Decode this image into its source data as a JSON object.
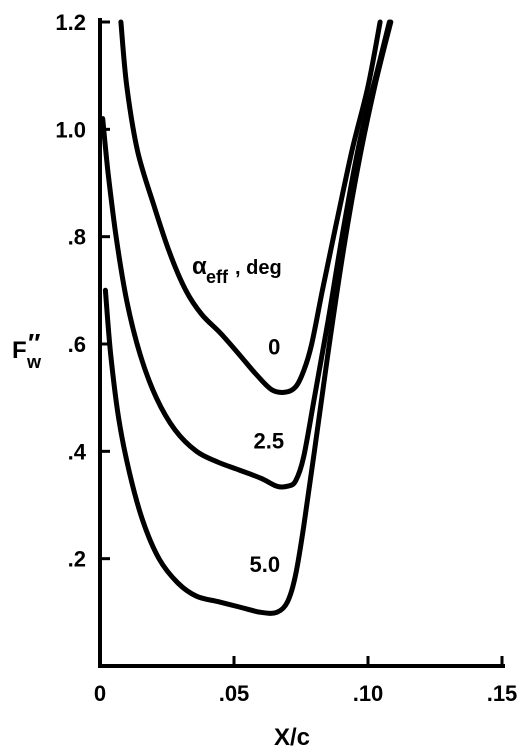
{
  "chart_data": {
    "type": "line",
    "title": "",
    "xlabel": "X/c",
    "ylabel_main": "F",
    "ylabel_prime": "″",
    "ylabel_sub": "w",
    "xlim": [
      0,
      0.15
    ],
    "ylim": [
      0,
      1.2
    ],
    "x_ticks": [
      {
        "value": 0,
        "label": "0"
      },
      {
        "value": 0.05,
        "label": ".05"
      },
      {
        "value": 0.1,
        "label": ".10"
      },
      {
        "value": 0.15,
        "label": ".15"
      }
    ],
    "y_ticks": [
      {
        "value": 0.2,
        "label": ".2"
      },
      {
        "value": 0.4,
        "label": ".4"
      },
      {
        "value": 0.6,
        "label": ".6"
      },
      {
        "value": 0.8,
        "label": ".8"
      },
      {
        "value": 1.0,
        "label": "1.0"
      },
      {
        "value": 1.2,
        "label": "1.2"
      }
    ],
    "legend": {
      "title_symbol": "α",
      "title_sub": "eff",
      "title_rest": ", deg",
      "placement": "center"
    },
    "grid": false,
    "series": [
      {
        "name": "0",
        "points": [
          [
            0.0078,
            1.2
          ],
          [
            0.01,
            1.08
          ],
          [
            0.014,
            0.96
          ],
          [
            0.02,
            0.86
          ],
          [
            0.026,
            0.77
          ],
          [
            0.032,
            0.7
          ],
          [
            0.038,
            0.655
          ],
          [
            0.045,
            0.62
          ],
          [
            0.052,
            0.58
          ],
          [
            0.058,
            0.545
          ],
          [
            0.064,
            0.515
          ],
          [
            0.069,
            0.51
          ],
          [
            0.073,
            0.52
          ],
          [
            0.076,
            0.55
          ],
          [
            0.079,
            0.6
          ],
          [
            0.083,
            0.7
          ],
          [
            0.088,
            0.82
          ],
          [
            0.094,
            0.96
          ],
          [
            0.1,
            1.08
          ],
          [
            0.1045,
            1.2
          ]
        ]
      },
      {
        "name": "2.5",
        "points": [
          [
            0.001,
            1.02
          ],
          [
            0.003,
            0.92
          ],
          [
            0.006,
            0.8
          ],
          [
            0.01,
            0.68
          ],
          [
            0.015,
            0.58
          ],
          [
            0.021,
            0.5
          ],
          [
            0.028,
            0.44
          ],
          [
            0.036,
            0.4
          ],
          [
            0.044,
            0.38
          ],
          [
            0.052,
            0.365
          ],
          [
            0.06,
            0.35
          ],
          [
            0.066,
            0.335
          ],
          [
            0.07,
            0.335
          ],
          [
            0.073,
            0.345
          ],
          [
            0.076,
            0.39
          ],
          [
            0.08,
            0.5
          ],
          [
            0.085,
            0.64
          ],
          [
            0.091,
            0.82
          ],
          [
            0.097,
            0.98
          ],
          [
            0.103,
            1.1
          ],
          [
            0.108,
            1.2
          ]
        ]
      },
      {
        "name": "5.0",
        "points": [
          [
            0.002,
            0.7
          ],
          [
            0.004,
            0.58
          ],
          [
            0.007,
            0.46
          ],
          [
            0.011,
            0.36
          ],
          [
            0.016,
            0.27
          ],
          [
            0.022,
            0.2
          ],
          [
            0.029,
            0.155
          ],
          [
            0.036,
            0.13
          ],
          [
            0.044,
            0.12
          ],
          [
            0.052,
            0.11
          ],
          [
            0.06,
            0.1
          ],
          [
            0.066,
            0.1
          ],
          [
            0.07,
            0.12
          ],
          [
            0.073,
            0.17
          ],
          [
            0.076,
            0.26
          ],
          [
            0.08,
            0.4
          ],
          [
            0.085,
            0.58
          ],
          [
            0.091,
            0.78
          ],
          [
            0.097,
            0.95
          ],
          [
            0.103,
            1.09
          ],
          [
            0.1085,
            1.2
          ]
        ]
      }
    ],
    "curve_labels": [
      {
        "series": "0",
        "text": "0",
        "x": 0.065,
        "y": 0.58
      },
      {
        "series": "2.5",
        "text": "2.5",
        "x": 0.063,
        "y": 0.405
      },
      {
        "series": "5.0",
        "text": "5.0",
        "x": 0.0615,
        "y": 0.175
      }
    ]
  }
}
